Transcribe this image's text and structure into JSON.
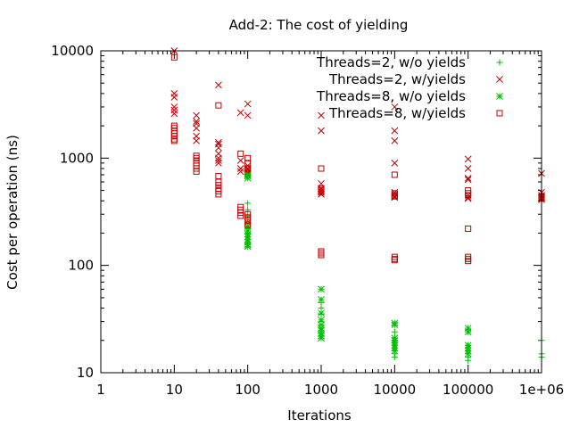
{
  "chart_data": {
    "type": "scatter",
    "title": "Add-2: The cost of yielding",
    "xlabel": "Iterations",
    "ylabel": "Cost per operation (ns)",
    "x_scale": "log",
    "y_scale": "log",
    "xlim": [
      1,
      1000000
    ],
    "ylim": [
      10,
      10000
    ],
    "x_ticks": [
      {
        "value": 1,
        "label": "1"
      },
      {
        "value": 10,
        "label": "10"
      },
      {
        "value": 100,
        "label": "100"
      },
      {
        "value": 1000,
        "label": "1000"
      },
      {
        "value": 10000,
        "label": "10000"
      },
      {
        "value": 100000,
        "label": "100000"
      },
      {
        "value": 1000000,
        "label": "1e+06"
      }
    ],
    "y_ticks": [
      {
        "value": 10,
        "label": "10"
      },
      {
        "value": 100,
        "label": "100"
      },
      {
        "value": 1000,
        "label": "1000"
      },
      {
        "value": 10000,
        "label": "10000"
      }
    ],
    "grid": false,
    "legend_position": "top-right",
    "series": [
      {
        "name": "Threads=2, w/o yields",
        "color": "#00c000",
        "marker": "plus",
        "points": [
          [
            100,
            380
          ],
          [
            100,
            330
          ],
          [
            100,
            290
          ],
          [
            100,
            250
          ],
          [
            100,
            220
          ],
          [
            100,
            200
          ],
          [
            100,
            175
          ],
          [
            100,
            160
          ],
          [
            1000,
            45
          ],
          [
            1000,
            40
          ],
          [
            1000,
            35
          ],
          [
            1000,
            30
          ],
          [
            1000,
            28
          ],
          [
            1000,
            26
          ],
          [
            1000,
            24
          ],
          [
            1000,
            22
          ],
          [
            10000,
            24
          ],
          [
            10000,
            21
          ],
          [
            10000,
            19
          ],
          [
            10000,
            18
          ],
          [
            10000,
            16
          ],
          [
            10000,
            15
          ],
          [
            10000,
            14
          ],
          [
            100000,
            25
          ],
          [
            100000,
            18
          ],
          [
            100000,
            16
          ],
          [
            100000,
            15
          ],
          [
            100000,
            14
          ],
          [
            100000,
            13
          ],
          [
            1000000,
            20
          ],
          [
            1000000,
            15
          ],
          [
            1000000,
            14
          ]
        ]
      },
      {
        "name": "Threads=2, w/yields",
        "color": "#c00000",
        "marker": "cross",
        "points": [
          [
            10,
            10000
          ],
          [
            10,
            4000
          ],
          [
            10,
            3700
          ],
          [
            10,
            3000
          ],
          [
            10,
            2800
          ],
          [
            10,
            2600
          ],
          [
            20,
            2500
          ],
          [
            20,
            2200
          ],
          [
            20,
            2100
          ],
          [
            20,
            1900
          ],
          [
            20,
            1600
          ],
          [
            20,
            1450
          ],
          [
            40,
            4800
          ],
          [
            40,
            1400
          ],
          [
            40,
            1350
          ],
          [
            40,
            1250
          ],
          [
            40,
            1100
          ],
          [
            40,
            1000
          ],
          [
            40,
            950
          ],
          [
            40,
            900
          ],
          [
            80,
            2650
          ],
          [
            80,
            950
          ],
          [
            80,
            800
          ],
          [
            80,
            750
          ],
          [
            100,
            3200
          ],
          [
            100,
            2500
          ],
          [
            100,
            850
          ],
          [
            100,
            800
          ],
          [
            100,
            780
          ],
          [
            100,
            750
          ],
          [
            100,
            720
          ],
          [
            100,
            700
          ],
          [
            1000,
            2500
          ],
          [
            1000,
            1800
          ],
          [
            1000,
            580
          ],
          [
            1000,
            520
          ],
          [
            1000,
            500
          ],
          [
            1000,
            480
          ],
          [
            1000,
            460
          ],
          [
            10000,
            3000
          ],
          [
            10000,
            1800
          ],
          [
            10000,
            1450
          ],
          [
            10000,
            900
          ],
          [
            10000,
            480
          ],
          [
            10000,
            460
          ],
          [
            10000,
            440
          ],
          [
            10000,
            430
          ],
          [
            100000,
            980
          ],
          [
            100000,
            800
          ],
          [
            100000,
            650
          ],
          [
            100000,
            630
          ],
          [
            100000,
            450
          ],
          [
            100000,
            430
          ],
          [
            100000,
            420
          ],
          [
            1000000,
            720
          ],
          [
            1000000,
            480
          ],
          [
            1000000,
            450
          ],
          [
            1000000,
            430
          ],
          [
            1000000,
            420
          ],
          [
            1000000,
            410
          ]
        ]
      },
      {
        "name": "Threads=8, w/o yields",
        "color": "#00c000",
        "marker": "star",
        "points": [
          [
            100,
            700
          ],
          [
            100,
            680
          ],
          [
            100,
            650
          ],
          [
            100,
            250
          ],
          [
            100,
            230
          ],
          [
            100,
            210
          ],
          [
            100,
            195
          ],
          [
            100,
            185
          ],
          [
            100,
            175
          ],
          [
            100,
            165
          ],
          [
            100,
            155
          ],
          [
            100,
            150
          ],
          [
            1000,
            60
          ],
          [
            1000,
            48
          ],
          [
            1000,
            36
          ],
          [
            1000,
            31
          ],
          [
            1000,
            28
          ],
          [
            1000,
            26
          ],
          [
            1000,
            25
          ],
          [
            1000,
            23
          ],
          [
            1000,
            22
          ],
          [
            1000,
            21
          ],
          [
            10000,
            29
          ],
          [
            10000,
            28
          ],
          [
            10000,
            21
          ],
          [
            10000,
            20
          ],
          [
            10000,
            19
          ],
          [
            10000,
            18
          ],
          [
            10000,
            17
          ],
          [
            10000,
            16
          ],
          [
            100000,
            26
          ],
          [
            100000,
            24
          ],
          [
            100000,
            18
          ],
          [
            100000,
            17
          ],
          [
            100000,
            16
          ],
          [
            100000,
            15
          ]
        ]
      },
      {
        "name": "Threads=8, w/yields",
        "color": "#c00000",
        "marker": "square",
        "points": [
          [
            10,
            8700
          ],
          [
            10,
            2000
          ],
          [
            10,
            1900
          ],
          [
            10,
            1800
          ],
          [
            10,
            1700
          ],
          [
            10,
            1600
          ],
          [
            10,
            1500
          ],
          [
            10,
            1450
          ],
          [
            20,
            1050
          ],
          [
            20,
            1000
          ],
          [
            20,
            950
          ],
          [
            20,
            900
          ],
          [
            20,
            850
          ],
          [
            20,
            800
          ],
          [
            20,
            750
          ],
          [
            40,
            3100
          ],
          [
            40,
            680
          ],
          [
            40,
            600
          ],
          [
            40,
            560
          ],
          [
            40,
            520
          ],
          [
            40,
            490
          ],
          [
            40,
            460
          ],
          [
            80,
            1100
          ],
          [
            80,
            350
          ],
          [
            80,
            330
          ],
          [
            80,
            310
          ],
          [
            80,
            290
          ],
          [
            100,
            1000
          ],
          [
            100,
            900
          ],
          [
            100,
            800
          ],
          [
            100,
            300
          ],
          [
            100,
            280
          ],
          [
            100,
            260
          ],
          [
            100,
            240
          ],
          [
            1000,
            800
          ],
          [
            1000,
            520
          ],
          [
            1000,
            500
          ],
          [
            1000,
            480
          ],
          [
            1000,
            135
          ],
          [
            1000,
            130
          ],
          [
            1000,
            125
          ],
          [
            10000,
            700
          ],
          [
            10000,
            470
          ],
          [
            10000,
            450
          ],
          [
            10000,
            440
          ],
          [
            10000,
            120
          ],
          [
            10000,
            115
          ],
          [
            10000,
            112
          ],
          [
            100000,
            500
          ],
          [
            100000,
            470
          ],
          [
            100000,
            450
          ],
          [
            100000,
            220
          ],
          [
            100000,
            120
          ],
          [
            100000,
            115
          ],
          [
            100000,
            110
          ],
          [
            1000000,
            440
          ],
          [
            1000000,
            430
          ],
          [
            1000000,
            420
          ]
        ]
      }
    ]
  }
}
